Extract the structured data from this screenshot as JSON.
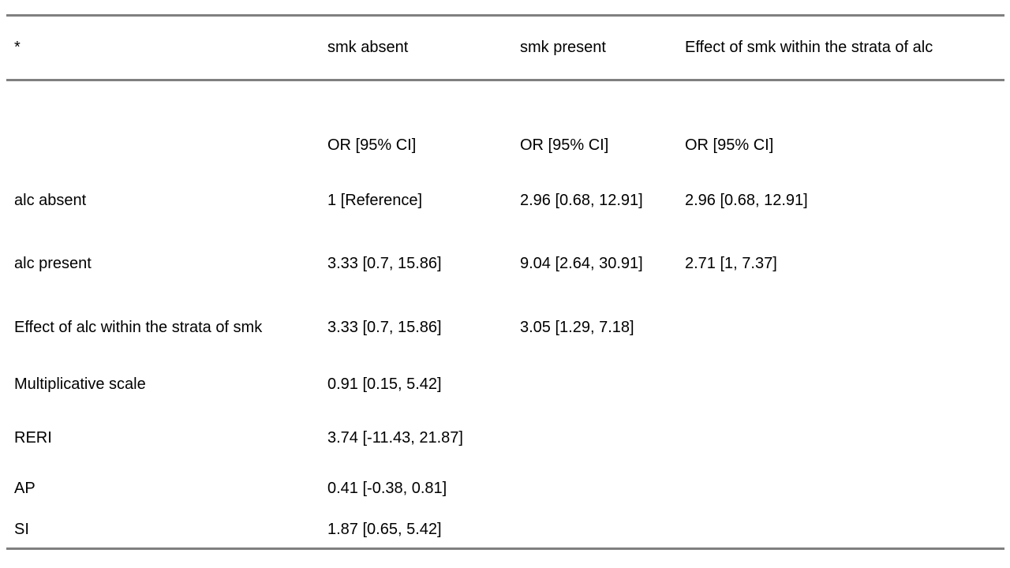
{
  "page": {
    "background": "#ffffff",
    "text_color": "#000000",
    "rule_color": "#808080"
  },
  "table": {
    "header": [
      "*",
      "smk absent",
      "smk present",
      "Effect of smk within the strata of alc"
    ],
    "subheader_note": "OR [95% CI]",
    "rows": [
      {
        "cells": [
          "",
          "OR [95% CI]",
          "OR [95% CI]",
          "OR [95% CI]"
        ]
      },
      {
        "cells": [
          "alc absent",
          "1 [Reference]",
          "2.96 [0.68, 12.91]",
          "2.96 [0.68, 12.91]"
        ]
      },
      {
        "cells": [
          "alc present",
          "3.33 [0.7, 15.86]",
          "9.04 [2.64, 30.91]",
          "2.71 [1, 7.37]"
        ]
      },
      {
        "cells": [
          "Effect of alc within the strata of smk",
          "3.33 [0.7, 15.86]",
          "3.05 [1.29, 7.18]",
          ""
        ]
      },
      {
        "cells": [
          "Multiplicative scale",
          "0.91 [0.15, 5.42]",
          "",
          ""
        ]
      },
      {
        "cells": [
          "RERI",
          "3.74 [-11.43, 21.87]",
          "",
          ""
        ]
      },
      {
        "cells": [
          "AP",
          "0.41 [-0.38, 0.81]",
          "",
          ""
        ]
      },
      {
        "cells": [
          "SI",
          "1.87 [0.65, 5.42]",
          "",
          ""
        ]
      }
    ]
  }
}
